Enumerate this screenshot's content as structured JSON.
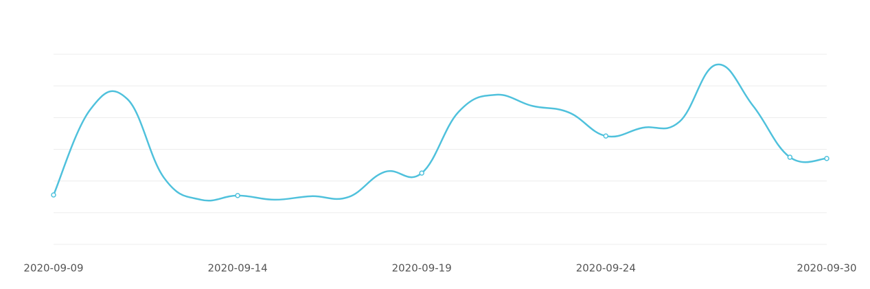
{
  "chart_data": {
    "type": "line",
    "categories": [
      "2020-09-09",
      null,
      null,
      null,
      null,
      "2020-09-14",
      null,
      null,
      null,
      null,
      "2020-09-19",
      null,
      null,
      null,
      null,
      "2020-09-24",
      null,
      null,
      null,
      null,
      null,
      "2020-09-30"
    ],
    "series": [
      {
        "color": "#4fc1dc",
        "values": [
          1.56,
          4.26,
          4.59,
          2.1,
          1.41,
          1.54,
          1.41,
          1.52,
          1.49,
          2.29,
          2.25,
          4.18,
          4.72,
          4.37,
          4.16,
          3.42,
          3.68,
          3.87,
          5.67,
          4.37,
          2.75,
          2.71
        ]
      }
    ],
    "ylim": [
      0,
      6
    ],
    "yticks": [
      0,
      1,
      2,
      3,
      4,
      5,
      6
    ],
    "grid": true
  }
}
